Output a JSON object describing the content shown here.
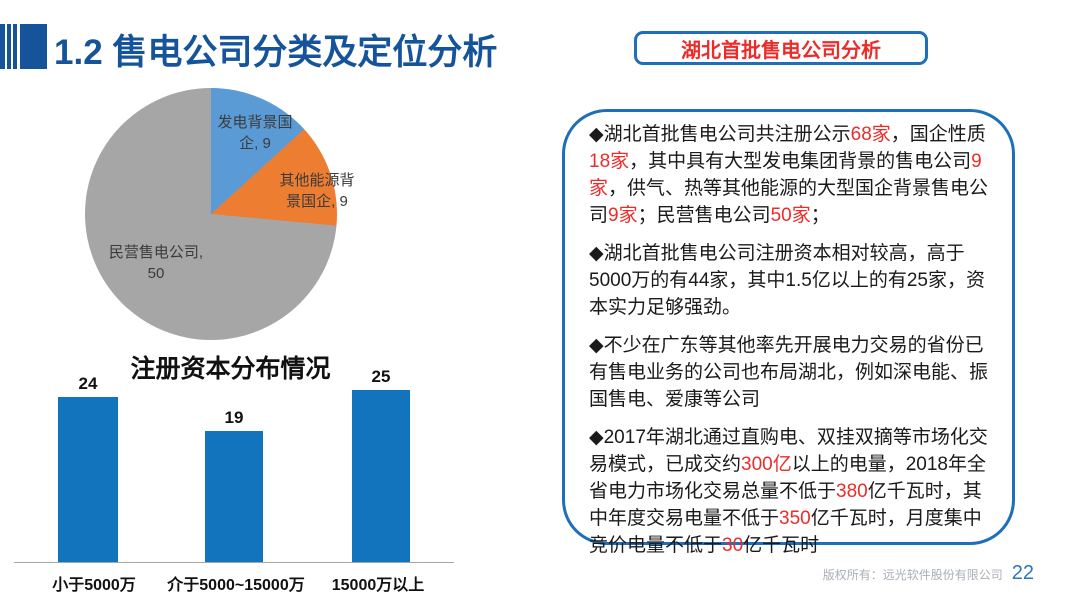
{
  "header": {
    "title": "1.2 售电公司分类及定位分析",
    "tag": "湖北首批售电公司分析"
  },
  "colors": {
    "title_blue": "#15549B",
    "accent_border_blue": "#1E6FBA",
    "highlight_red": "#ED2C2A",
    "bar_blue": "#1274BC",
    "pie_blue": "#5B9BD5",
    "pie_orange": "#ED7D31",
    "pie_gray": "#A6A6A6",
    "page_num_blue": "#2E75B6"
  },
  "chart_data": [
    {
      "type": "pie",
      "title": "",
      "labels": [
        "发电背景国企",
        "其他能源背景国企",
        "民营售电公司"
      ],
      "values": [
        9,
        9,
        50
      ],
      "colors": [
        "#5B9BD5",
        "#ED7D31",
        "#A6A6A6"
      ],
      "start_angle_deg": 0,
      "labels_display": {
        "blue": {
          "line1": "发电背景国",
          "line2": "企, 9"
        },
        "orange": {
          "line1": "其他能源背",
          "line2": "景国企, 9"
        },
        "gray": {
          "line1": "民营售电公司,",
          "line2": "50"
        }
      }
    },
    {
      "type": "bar",
      "title": "注册资本分布情况",
      "categories": [
        "小于5000万",
        "介于5000~15000万",
        "15000万以上"
      ],
      "values": [
        24,
        19,
        25
      ],
      "ylim": [
        0,
        26
      ],
      "grid": false,
      "legend": false,
      "bar_color": "#1274BC"
    }
  ],
  "panel": {
    "paragraphs": [
      {
        "segments": [
          {
            "t": "◆湖北首批售电公司共注册公示"
          },
          {
            "t": "68家",
            "red": true
          },
          {
            "t": "，国企性质"
          },
          {
            "t": "18家",
            "red": true
          },
          {
            "t": "，其中具有大型发电集团背景的售电公司"
          },
          {
            "t": "9家",
            "red": true
          },
          {
            "t": "，供气、热等其他能源的大型国企背景售电公司"
          },
          {
            "t": "9家",
            "red": true
          },
          {
            "t": "；民营售电公司"
          },
          {
            "t": "50家",
            "red": true
          },
          {
            "t": "；"
          }
        ]
      },
      {
        "segments": [
          {
            "t": "◆湖北首批售电公司注册资本相对较高，高于5000万的有44家，其中1.5亿以上的有25家，资本实力足够强劲。"
          }
        ]
      },
      {
        "segments": [
          {
            "t": "◆不少在广东等其他率先开展电力交易的省份已有售电业务的公司也布局湖北，例如深电能、振国售电、爱康等公司"
          }
        ]
      },
      {
        "segments": [
          {
            "t": "◆2017年湖北通过直购电、双挂双摘等市场化交易模式，已成交约"
          },
          {
            "t": "300亿",
            "red": true
          },
          {
            "t": "以上的电量，2018年全省电力市场化交易总量不低于"
          },
          {
            "t": "380",
            "red": true
          },
          {
            "t": "亿千瓦时，其中年度交易电量不低于"
          },
          {
            "t": "350",
            "red": true
          },
          {
            "t": "亿千瓦时，月度集中竞价电量不低于"
          },
          {
            "t": "30",
            "red": true
          },
          {
            "t": "亿千瓦时"
          }
        ]
      }
    ]
  },
  "footer": {
    "copyright": "版权所有：远光软件股份有限公司",
    "page": "22"
  }
}
